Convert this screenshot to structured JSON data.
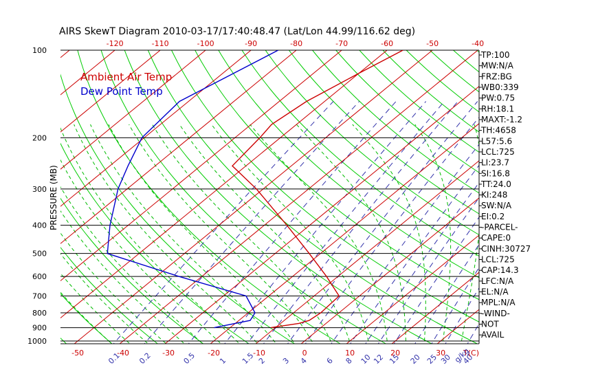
{
  "chart_data": {
    "type": "line",
    "title": "AIRS SkewT Diagram 2010-03-17/17:40:48.47 (Lat/Lon 44.99/116.62 deg)",
    "ylabel": "PRESSURE (MB)",
    "y_ticks": [
      100,
      200,
      300,
      400,
      500,
      600,
      700,
      800,
      900,
      1000
    ],
    "top_temp_ticks": [
      -120,
      -110,
      -100,
      -90,
      -80,
      -70,
      -60,
      -50,
      -40
    ],
    "bottom_temp_ticks": [
      -50,
      -40,
      -30,
      -20,
      -10,
      0,
      10,
      20,
      30
    ],
    "bottom_axis_unit": "T(C)",
    "mixing_ratio_ticks": [
      "0.1",
      "0.2",
      "0.5",
      "1",
      "1.5",
      "2",
      "3",
      "4",
      "6",
      "8",
      "10",
      "12",
      "15",
      "20",
      "25",
      "30",
      "40"
    ],
    "mixing_ratio_unit": "g/kg",
    "legend": [
      {
        "label": "Ambient Air Temp",
        "color": "#cc0000"
      },
      {
        "label": "Dew Point Temp",
        "color": "#0000cc"
      }
    ],
    "series": [
      {
        "name": "Ambient Air Temp",
        "color": "#cc0000",
        "points": [
          {
            "p": 100,
            "t": -56.5
          },
          {
            "p": 120,
            "t": -60.0
          },
          {
            "p": 150,
            "t": -64.0
          },
          {
            "p": 180,
            "t": -65.5
          },
          {
            "p": 200,
            "t": -64.5
          },
          {
            "p": 250,
            "t": -63.0
          },
          {
            "p": 300,
            "t": -51.5
          },
          {
            "p": 400,
            "t": -35.0
          },
          {
            "p": 500,
            "t": -22.5
          },
          {
            "p": 600,
            "t": -12.5
          },
          {
            "p": 700,
            "t": -4.5
          },
          {
            "p": 800,
            "t": -4.0
          },
          {
            "p": 850,
            "t": -4.5
          },
          {
            "p": 870,
            "t": -6.0
          },
          {
            "p": 900,
            "t": -11.0
          }
        ]
      },
      {
        "name": "Dew Point Temp",
        "color": "#0000cc",
        "points": [
          {
            "p": 100,
            "t": -84.0
          },
          {
            "p": 150,
            "t": -92.0
          },
          {
            "p": 200,
            "t": -90.5
          },
          {
            "p": 250,
            "t": -86.0
          },
          {
            "p": 300,
            "t": -82.0
          },
          {
            "p": 400,
            "t": -74.0
          },
          {
            "p": 500,
            "t": -67.0
          },
          {
            "p": 600,
            "t": -45.0
          },
          {
            "p": 700,
            "t": -25.0
          },
          {
            "p": 800,
            "t": -18.5
          },
          {
            "p": 850,
            "t": -17.5
          },
          {
            "p": 900,
            "t": -23.5
          }
        ]
      }
    ]
  },
  "side_panel": [
    "TP:100",
    "MW:N/A",
    "FRZ:BG",
    "WB0:339",
    "PW:0.75",
    "RH:18.1",
    "MAXT:-1.2",
    "TH:4658",
    "L57:5.6",
    "LCL:725",
    "LI:23.7",
    "SI:16.8",
    "TT:24.0",
    "KI:248",
    "SW:N/A",
    "EI:0.2",
    "-PARCEL-",
    "CAPE:0",
    "CINH:30727",
    "LCL:725",
    "CAP:14.3",
    "LFC:N/A",
    "EL:N/A",
    "MPL:N/A",
    "-WIND-",
    "NOT",
    "AVAIL"
  ],
  "colors": {
    "isotherm": "#cc0000",
    "dry_adiabat": "#00cc00",
    "moist_adiabat": "#00bb00",
    "mixing_ratio": "#3333aa",
    "axis": "#000000"
  }
}
